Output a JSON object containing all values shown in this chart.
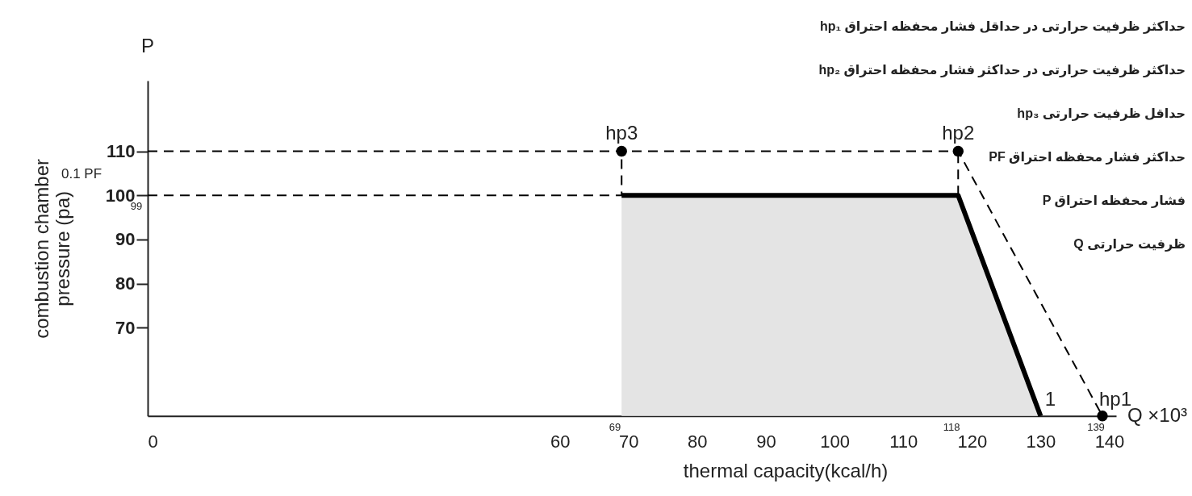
{
  "chart_data": {
    "type": "line",
    "xlabel": "thermal capacity(kcal/h)",
    "ylabel": "combustion chamber pressure (pa)",
    "xlim": [
      0,
      141
    ],
    "xticks": [
      0,
      60,
      70,
      80,
      90,
      100,
      110,
      120,
      130,
      140
    ],
    "ylim": [
      50,
      126
    ],
    "yticks": [
      70,
      80,
      90,
      100,
      110
    ],
    "grid": false,
    "series": [
      {
        "type": "area",
        "color": "#000000",
        "x": [
          69,
          118,
          130
        ],
        "values": [
          100,
          100,
          50
        ]
      },
      {
        "line_style": "dashed",
        "color": "#000000",
        "x": [
          0,
          118,
          139
        ],
        "values": [
          110,
          110,
          50
        ]
      },
      {
        "line_style": "dashed",
        "color": "#000000",
        "x": [
          0,
          69,
          69
        ],
        "values": [
          100,
          100,
          110
        ]
      },
      {
        "line_style": "dashed",
        "color": "#000000",
        "x": [
          118,
          118
        ],
        "values": [
          100,
          110
        ]
      },
      {
        "type": "scatter",
        "marker": "circle",
        "color": "#000000",
        "x": [
          69,
          118,
          139
        ],
        "values": [
          110,
          110,
          50
        ]
      }
    ],
    "annotations": [
      "hp₁ حداکثر ظرفیت حرارتی در حداقل فشار محفظه احتراق",
      "hp₂ حداکثر ظرفیت حرارتی در حداکثر فشار محفظه احتراق",
      "hp₃ حداقل ظرفیت حرارتی",
      "PF حداکثر فشار محفظه احتراق",
      "P فشار محفظه احتراق",
      "Q ظرفیت حرارتی",
      {
        "text": "hp3",
        "x": 69,
        "y": 110
      },
      {
        "text": "hp2",
        "x": 118,
        "y": 110
      },
      {
        "text": "hp1",
        "x": 139,
        "y": 50
      },
      {
        "text": "1",
        "x": 130,
        "y": 50
      },
      "69",
      "118",
      "139",
      "99",
      "0.1 PF",
      "P",
      "Q ×10³"
    ]
  }
}
